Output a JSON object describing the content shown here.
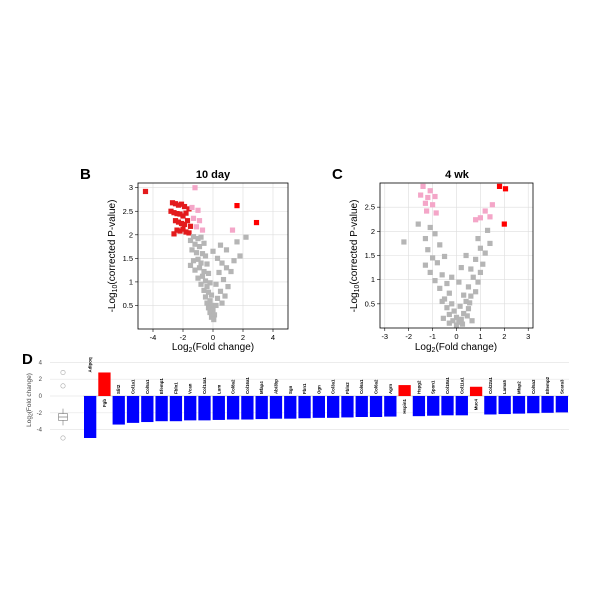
{
  "chart_data": [
    {
      "panel": "B",
      "type": "scatter",
      "title": "10 day",
      "xlabel": "Log2(Fold change)",
      "ylabel": "-Log10(corrected P-value)",
      "xlim": [
        -5,
        5
      ],
      "ylim": [
        0,
        3.1
      ],
      "xticks": [
        -4,
        -2,
        0,
        2,
        4
      ],
      "yticks": [
        0.5,
        1,
        1.5,
        2,
        2.5,
        3
      ],
      "grid": true,
      "colors": {
        "up": "#ff0000",
        "down": "#e31a1c",
        "near": "#f4a6c8",
        "ns": "#b5b5b5"
      },
      "points": [
        {
          "x": -4.5,
          "y": 2.92,
          "c": "down"
        },
        {
          "x": -2.7,
          "y": 2.68,
          "c": "down"
        },
        {
          "x": -2.5,
          "y": 2.66,
          "c": "down"
        },
        {
          "x": -2.3,
          "y": 2.63,
          "c": "down"
        },
        {
          "x": -2.1,
          "y": 2.65,
          "c": "down"
        },
        {
          "x": -1.9,
          "y": 2.6,
          "c": "down"
        },
        {
          "x": -2.8,
          "y": 2.5,
          "c": "down"
        },
        {
          "x": -2.6,
          "y": 2.47,
          "c": "down"
        },
        {
          "x": -2.4,
          "y": 2.45,
          "c": "down"
        },
        {
          "x": -2.2,
          "y": 2.44,
          "c": "down"
        },
        {
          "x": -2.0,
          "y": 2.4,
          "c": "down"
        },
        {
          "x": -1.8,
          "y": 2.46,
          "c": "down"
        },
        {
          "x": -1.6,
          "y": 2.55,
          "c": "down"
        },
        {
          "x": -2.5,
          "y": 2.3,
          "c": "down"
        },
        {
          "x": -2.3,
          "y": 2.27,
          "c": "down"
        },
        {
          "x": -2.1,
          "y": 2.24,
          "c": "down"
        },
        {
          "x": -1.9,
          "y": 2.22,
          "c": "down"
        },
        {
          "x": -1.7,
          "y": 2.3,
          "c": "down"
        },
        {
          "x": -2.4,
          "y": 2.1,
          "c": "down"
        },
        {
          "x": -2.2,
          "y": 2.08,
          "c": "down"
        },
        {
          "x": -2.0,
          "y": 2.12,
          "c": "down"
        },
        {
          "x": -1.8,
          "y": 2.06,
          "c": "down"
        },
        {
          "x": -1.6,
          "y": 2.04,
          "c": "down"
        },
        {
          "x": -2.6,
          "y": 2.02,
          "c": "down"
        },
        {
          "x": -1.5,
          "y": 2.18,
          "c": "down"
        },
        {
          "x": 1.6,
          "y": 2.62,
          "c": "up"
        },
        {
          "x": 2.9,
          "y": 2.26,
          "c": "up"
        },
        {
          "x": -1.2,
          "y": 3.0,
          "c": "near"
        },
        {
          "x": -1.4,
          "y": 2.58,
          "c": "near"
        },
        {
          "x": -1.0,
          "y": 2.52,
          "c": "near"
        },
        {
          "x": -1.3,
          "y": 2.35,
          "c": "near"
        },
        {
          "x": -0.9,
          "y": 2.3,
          "c": "near"
        },
        {
          "x": -1.1,
          "y": 2.17,
          "c": "near"
        },
        {
          "x": -0.7,
          "y": 2.1,
          "c": "near"
        },
        {
          "x": 1.3,
          "y": 2.1,
          "c": "near"
        },
        {
          "x": -1.3,
          "y": 1.96,
          "c": "ns"
        },
        {
          "x": -1.0,
          "y": 1.92,
          "c": "ns"
        },
        {
          "x": -0.8,
          "y": 1.95,
          "c": "ns"
        },
        {
          "x": -1.5,
          "y": 1.88,
          "c": "ns"
        },
        {
          "x": -1.2,
          "y": 1.8,
          "c": "ns"
        },
        {
          "x": -0.9,
          "y": 1.75,
          "c": "ns"
        },
        {
          "x": -0.6,
          "y": 1.82,
          "c": "ns"
        },
        {
          "x": -1.4,
          "y": 1.68,
          "c": "ns"
        },
        {
          "x": -1.1,
          "y": 1.62,
          "c": "ns"
        },
        {
          "x": -0.7,
          "y": 1.6,
          "c": "ns"
        },
        {
          "x": -0.5,
          "y": 1.55,
          "c": "ns"
        },
        {
          "x": -1.0,
          "y": 1.48,
          "c": "ns"
        },
        {
          "x": -1.3,
          "y": 1.45,
          "c": "ns"
        },
        {
          "x": -0.8,
          "y": 1.4,
          "c": "ns"
        },
        {
          "x": -0.4,
          "y": 1.38,
          "c": "ns"
        },
        {
          "x": -0.9,
          "y": 1.3,
          "c": "ns"
        },
        {
          "x": -1.2,
          "y": 1.25,
          "c": "ns"
        },
        {
          "x": -0.6,
          "y": 1.22,
          "c": "ns"
        },
        {
          "x": -1.5,
          "y": 1.35,
          "c": "ns"
        },
        {
          "x": -0.3,
          "y": 1.18,
          "c": "ns"
        },
        {
          "x": -0.7,
          "y": 1.12,
          "c": "ns"
        },
        {
          "x": -1.0,
          "y": 1.08,
          "c": "ns"
        },
        {
          "x": -0.5,
          "y": 1.02,
          "c": "ns"
        },
        {
          "x": -0.2,
          "y": 0.98,
          "c": "ns"
        },
        {
          "x": -0.8,
          "y": 0.95,
          "c": "ns"
        },
        {
          "x": -0.4,
          "y": 0.9,
          "c": "ns"
        },
        {
          "x": -0.6,
          "y": 0.82,
          "c": "ns"
        },
        {
          "x": -0.3,
          "y": 0.78,
          "c": "ns"
        },
        {
          "x": -0.1,
          "y": 0.72,
          "c": "ns"
        },
        {
          "x": -0.5,
          "y": 0.68,
          "c": "ns"
        },
        {
          "x": -0.2,
          "y": 0.6,
          "c": "ns"
        },
        {
          "x": -0.4,
          "y": 0.55,
          "c": "ns"
        },
        {
          "x": -0.1,
          "y": 0.5,
          "c": "ns"
        },
        {
          "x": -0.3,
          "y": 0.45,
          "c": "ns"
        },
        {
          "x": 0.0,
          "y": 0.4,
          "c": "ns"
        },
        {
          "x": -0.2,
          "y": 0.35,
          "c": "ns"
        },
        {
          "x": 0.1,
          "y": 0.3,
          "c": "ns"
        },
        {
          "x": -0.1,
          "y": 0.25,
          "c": "ns"
        },
        {
          "x": 0.05,
          "y": 0.2,
          "c": "ns"
        },
        {
          "x": 0.0,
          "y": 1.65,
          "c": "ns"
        },
        {
          "x": 0.3,
          "y": 1.5,
          "c": "ns"
        },
        {
          "x": 0.6,
          "y": 1.4,
          "c": "ns"
        },
        {
          "x": 0.9,
          "y": 1.3,
          "c": "ns"
        },
        {
          "x": 0.4,
          "y": 1.2,
          "c": "ns"
        },
        {
          "x": 1.2,
          "y": 1.22,
          "c": "ns"
        },
        {
          "x": 0.7,
          "y": 1.05,
          "c": "ns"
        },
        {
          "x": 0.2,
          "y": 0.95,
          "c": "ns"
        },
        {
          "x": 1.0,
          "y": 0.9,
          "c": "ns"
        },
        {
          "x": 0.5,
          "y": 0.8,
          "c": "ns"
        },
        {
          "x": 0.3,
          "y": 0.65,
          "c": "ns"
        },
        {
          "x": 0.8,
          "y": 0.7,
          "c": "ns"
        },
        {
          "x": 0.2,
          "y": 0.5,
          "c": "ns"
        },
        {
          "x": 0.6,
          "y": 0.55,
          "c": "ns"
        },
        {
          "x": 1.6,
          "y": 1.85,
          "c": "ns"
        },
        {
          "x": 2.2,
          "y": 1.95,
          "c": "ns"
        },
        {
          "x": 1.8,
          "y": 1.55,
          "c": "ns"
        },
        {
          "x": 1.4,
          "y": 1.45,
          "c": "ns"
        },
        {
          "x": 0.9,
          "y": 1.68,
          "c": "ns"
        },
        {
          "x": 0.5,
          "y": 1.78,
          "c": "ns"
        }
      ]
    },
    {
      "panel": "C",
      "type": "scatter",
      "title": "4 wk",
      "xlabel": "Log2(Fold change)",
      "ylabel": "-Log10(corrected P-value)",
      "xlim": [
        -3.2,
        3.2
      ],
      "ylim": [
        0,
        3.0
      ],
      "xticks": [
        -3,
        -2,
        -1,
        0,
        1,
        2,
        3
      ],
      "yticks": [
        0.5,
        1,
        1.5,
        2,
        2.5
      ],
      "grid": true,
      "colors": {
        "up": "#ff0000",
        "down": "#e31a1c",
        "near": "#f4a6c8",
        "ns": "#b5b5b5"
      },
      "points": [
        {
          "x": 1.8,
          "y": 2.93,
          "c": "up"
        },
        {
          "x": 2.05,
          "y": 2.88,
          "c": "up"
        },
        {
          "x": 2.0,
          "y": 2.15,
          "c": "up"
        },
        {
          "x": -1.4,
          "y": 2.93,
          "c": "near"
        },
        {
          "x": -1.1,
          "y": 2.84,
          "c": "near"
        },
        {
          "x": -1.5,
          "y": 2.75,
          "c": "near"
        },
        {
          "x": -1.2,
          "y": 2.7,
          "c": "near"
        },
        {
          "x": -0.9,
          "y": 2.72,
          "c": "near"
        },
        {
          "x": -1.3,
          "y": 2.58,
          "c": "near"
        },
        {
          "x": -1.0,
          "y": 2.55,
          "c": "near"
        },
        {
          "x": -1.25,
          "y": 2.42,
          "c": "near"
        },
        {
          "x": -0.85,
          "y": 2.38,
          "c": "near"
        },
        {
          "x": 1.5,
          "y": 2.55,
          "c": "near"
        },
        {
          "x": 1.2,
          "y": 2.42,
          "c": "near"
        },
        {
          "x": 1.0,
          "y": 2.28,
          "c": "near"
        },
        {
          "x": 0.8,
          "y": 2.24,
          "c": "near"
        },
        {
          "x": 1.4,
          "y": 2.3,
          "c": "near"
        },
        {
          "x": -2.2,
          "y": 1.78,
          "c": "ns"
        },
        {
          "x": -1.6,
          "y": 2.15,
          "c": "ns"
        },
        {
          "x": -1.1,
          "y": 2.08,
          "c": "ns"
        },
        {
          "x": -1.3,
          "y": 1.85,
          "c": "ns"
        },
        {
          "x": -0.9,
          "y": 1.95,
          "c": "ns"
        },
        {
          "x": -1.2,
          "y": 1.62,
          "c": "ns"
        },
        {
          "x": -0.7,
          "y": 1.72,
          "c": "ns"
        },
        {
          "x": -1.0,
          "y": 1.45,
          "c": "ns"
        },
        {
          "x": -1.3,
          "y": 1.3,
          "c": "ns"
        },
        {
          "x": -0.8,
          "y": 1.35,
          "c": "ns"
        },
        {
          "x": -0.5,
          "y": 1.48,
          "c": "ns"
        },
        {
          "x": -1.1,
          "y": 1.15,
          "c": "ns"
        },
        {
          "x": -0.6,
          "y": 1.1,
          "c": "ns"
        },
        {
          "x": -0.9,
          "y": 0.98,
          "c": "ns"
        },
        {
          "x": -0.4,
          "y": 0.92,
          "c": "ns"
        },
        {
          "x": -0.7,
          "y": 0.82,
          "c": "ns"
        },
        {
          "x": -0.3,
          "y": 0.72,
          "c": "ns"
        },
        {
          "x": -0.5,
          "y": 0.6,
          "c": "ns"
        },
        {
          "x": -0.2,
          "y": 0.5,
          "c": "ns"
        },
        {
          "x": -0.4,
          "y": 0.42,
          "c": "ns"
        },
        {
          "x": -0.1,
          "y": 0.35,
          "c": "ns"
        },
        {
          "x": -0.3,
          "y": 0.28,
          "c": "ns"
        },
        {
          "x": 0.0,
          "y": 0.22,
          "c": "ns"
        },
        {
          "x": -0.15,
          "y": 0.15,
          "c": "ns"
        },
        {
          "x": 0.1,
          "y": 0.12,
          "c": "ns"
        },
        {
          "x": 0.0,
          "y": 0.06,
          "c": "ns"
        },
        {
          "x": 0.2,
          "y": 0.18,
          "c": "ns"
        },
        {
          "x": 0.3,
          "y": 0.3,
          "c": "ns"
        },
        {
          "x": 0.5,
          "y": 0.4,
          "c": "ns"
        },
        {
          "x": 0.4,
          "y": 0.55,
          "c": "ns"
        },
        {
          "x": 0.6,
          "y": 0.66,
          "c": "ns"
        },
        {
          "x": 0.8,
          "y": 0.75,
          "c": "ns"
        },
        {
          "x": 0.5,
          "y": 0.85,
          "c": "ns"
        },
        {
          "x": 0.9,
          "y": 0.95,
          "c": "ns"
        },
        {
          "x": 0.7,
          "y": 1.05,
          "c": "ns"
        },
        {
          "x": 1.0,
          "y": 1.15,
          "c": "ns"
        },
        {
          "x": 0.6,
          "y": 1.22,
          "c": "ns"
        },
        {
          "x": 1.1,
          "y": 1.32,
          "c": "ns"
        },
        {
          "x": 0.8,
          "y": 1.42,
          "c": "ns"
        },
        {
          "x": 1.2,
          "y": 1.55,
          "c": "ns"
        },
        {
          "x": 0.4,
          "y": 1.5,
          "c": "ns"
        },
        {
          "x": 1.0,
          "y": 1.65,
          "c": "ns"
        },
        {
          "x": 1.4,
          "y": 1.75,
          "c": "ns"
        },
        {
          "x": 0.9,
          "y": 1.85,
          "c": "ns"
        },
        {
          "x": 1.3,
          "y": 2.02,
          "c": "ns"
        },
        {
          "x": 0.2,
          "y": 1.25,
          "c": "ns"
        },
        {
          "x": 0.1,
          "y": 0.95,
          "c": "ns"
        },
        {
          "x": -0.2,
          "y": 1.05,
          "c": "ns"
        },
        {
          "x": 0.3,
          "y": 0.68,
          "c": "ns"
        },
        {
          "x": 0.15,
          "y": 0.45,
          "c": "ns"
        },
        {
          "x": 0.45,
          "y": 0.25,
          "c": "ns"
        },
        {
          "x": -0.55,
          "y": 0.2,
          "c": "ns"
        },
        {
          "x": 0.25,
          "y": 0.08,
          "c": "ns"
        },
        {
          "x": -0.3,
          "y": 0.1,
          "c": "ns"
        },
        {
          "x": 0.65,
          "y": 0.15,
          "c": "ns"
        },
        {
          "x": 0.55,
          "y": 0.52,
          "c": "ns"
        },
        {
          "x": -0.6,
          "y": 0.55,
          "c": "ns"
        }
      ]
    },
    {
      "panel": "D",
      "type": "bar",
      "ylabel": "Log2(Fold change)",
      "ylim": [
        -5,
        4
      ],
      "yticks": [
        4,
        2,
        0,
        -2,
        -4
      ],
      "colors": {
        "up": "#ff0000",
        "down": "#0000ff"
      },
      "categories": [
        "Adipoq",
        "Fgb",
        "Slit2",
        "Col1a1",
        "Col5a1",
        "Efemp1",
        "Fbln1",
        "Vcan",
        "Col14a1",
        "Lum",
        "Col8a2",
        "Col16a1",
        "Mfap4",
        "Abi3bp",
        "Sgn",
        "Fbn1",
        "Ogn",
        "Col3a1",
        "Fbln2",
        "Col6a1",
        "Col6a2",
        "Agrn",
        "Hspin1",
        "Hspg2",
        "Spon1",
        "Col18a1",
        "Col11a1",
        "Muc4",
        "Col22a1",
        "Lama5",
        "Mfap2",
        "Col5a3",
        "Eltemp2",
        "Scara3"
      ],
      "values": [
        -5.0,
        2.8,
        -3.4,
        -3.2,
        -3.1,
        -3.0,
        -3.0,
        -2.9,
        -2.9,
        -2.85,
        -2.8,
        -2.8,
        -2.75,
        -2.7,
        -2.7,
        -2.65,
        -2.6,
        -2.6,
        -2.55,
        -2.5,
        -2.5,
        -2.45,
        1.3,
        -2.4,
        -2.35,
        -2.3,
        -2.3,
        1.1,
        -2.2,
        -2.15,
        -2.1,
        -2.05,
        -2.0,
        -1.95
      ],
      "boxplot": {
        "q1": -2.9,
        "median": -2.5,
        "q3": -2.1,
        "whisker_low": -3.5,
        "whisker_high": -1.5,
        "outliers": [
          2.8,
          1.2,
          -5.0
        ]
      }
    }
  ],
  "labels": {
    "panel_b": "B",
    "panel_c": "C",
    "panel_d": "D",
    "log2_prefix": "Log",
    "log2_sub": "2",
    "fc_suffix": "(Fold change)",
    "pval_prefix": "-Log",
    "pval_sub": "10",
    "pval_suffix": "(corrected P-value)"
  }
}
